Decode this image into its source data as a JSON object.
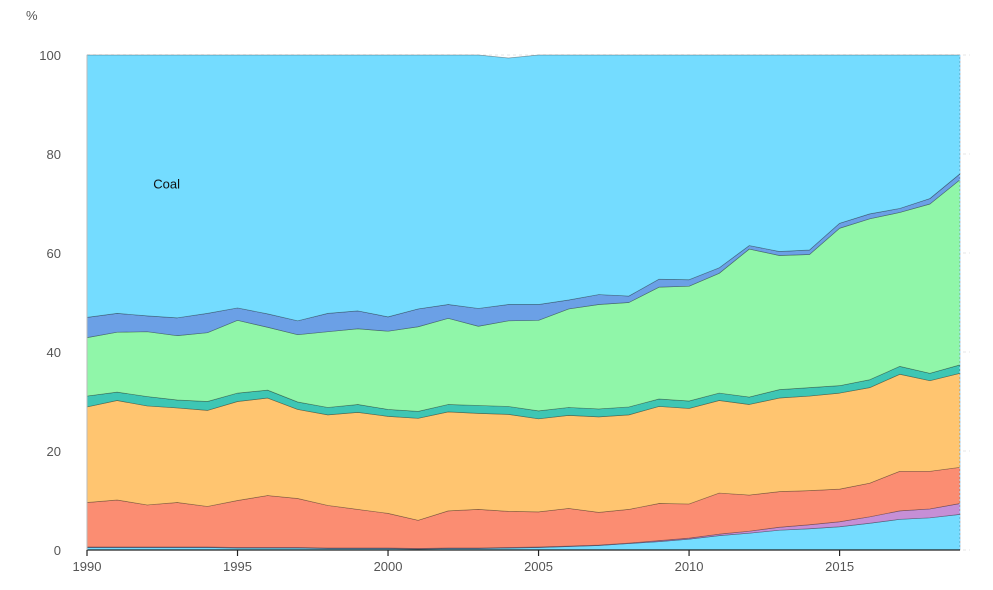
{
  "chart_data": {
    "type": "area",
    "stacked": true,
    "y_unit": "%",
    "ylim": [
      0,
      100
    ],
    "xlim": [
      1990,
      2019
    ],
    "y_ticks": [
      "0",
      "20",
      "40",
      "60",
      "80",
      "100"
    ],
    "x_ticks": [
      "1990",
      "1995",
      "2000",
      "2005",
      "2010",
      "2015"
    ],
    "grid": true,
    "annotations": [
      {
        "text": "Coal",
        "x": 1992.2,
        "y": 73
      }
    ],
    "x": [
      1990,
      1991,
      1992,
      1993,
      1994,
      1995,
      1996,
      1997,
      1998,
      1999,
      2000,
      2001,
      2002,
      2003,
      2004,
      2005,
      2006,
      2007,
      2008,
      2009,
      2010,
      2011,
      2012,
      2013,
      2014,
      2015,
      2016,
      2017,
      2018,
      2019
    ],
    "series": [
      {
        "color": "#74dcff",
        "values": [
          0.5,
          0.5,
          0.5,
          0.5,
          0.5,
          0.4,
          0.4,
          0.4,
          0.3,
          0.3,
          0.3,
          0.2,
          0.3,
          0.3,
          0.4,
          0.5,
          0.7,
          0.9,
          1.3,
          1.7,
          2.2,
          2.9,
          3.4,
          4,
          4.3,
          4.7,
          5.4,
          6.2,
          6.5,
          7.2
        ]
      },
      {
        "color": "#c68fd6",
        "values": [
          0.1,
          0.1,
          0.1,
          0.1,
          0.1,
          0.1,
          0.1,
          0.1,
          0.1,
          0.1,
          0.1,
          0.1,
          0.1,
          0.1,
          0.1,
          0.1,
          0.1,
          0.1,
          0.1,
          0.2,
          0.2,
          0.3,
          0.4,
          0.6,
          0.8,
          1.0,
          1.3,
          1.7,
          1.8,
          2.2
        ]
      },
      {
        "color": "#fb8d72",
        "values": [
          9.0,
          9.5,
          8.5,
          9.0,
          8.2,
          9.5,
          10.5,
          9.9,
          8.6,
          7.8,
          7,
          5.7,
          7.5,
          7.8,
          7.3,
          7.1,
          7.6,
          6.6,
          6.8,
          7.5,
          6.9,
          8.3,
          7.3,
          7.2,
          6.9,
          6.6,
          6.8,
          8.0,
          7.6,
          7.3
        ]
      },
      {
        "color": "#ffc570",
        "values": [
          19.3,
          20.1,
          20,
          19.1,
          19.4,
          20,
          19.7,
          18,
          18.3,
          19.6,
          19.6,
          20.6,
          20,
          19.4,
          19.6,
          18.8,
          18.8,
          19.3,
          19.1,
          19.6,
          19.3,
          18.7,
          18.3,
          18.9,
          19.1,
          19.4,
          19.3,
          19.6,
          18.3,
          19.0
        ]
      },
      {
        "color": "#3ec6b4",
        "values": [
          2.2,
          1.7,
          1.9,
          1.6,
          1.8,
          1.7,
          1.6,
          1.5,
          1.5,
          1.6,
          1.4,
          1.4,
          1.5,
          1.6,
          1.6,
          1.6,
          1.6,
          1.6,
          1.6,
          1.5,
          1.5,
          1.5,
          1.5,
          1.7,
          1.7,
          1.5,
          1.6,
          1.6,
          1.5,
          1.7
        ]
      },
      {
        "color": "#90f6a9",
        "values": [
          11.8,
          12.1,
          13.1,
          13,
          13.9,
          14.7,
          12.7,
          13.6,
          15.3,
          15.3,
          15.8,
          17.1,
          17.4,
          16,
          17.3,
          18.3,
          19.9,
          21.1,
          21.1,
          22.6,
          23.2,
          24.2,
          29.9,
          27.1,
          26.9,
          31.8,
          32.5,
          31.1,
          34.2,
          37.4
        ]
      },
      {
        "color": "#6ba0e6",
        "values": [
          4.1,
          3.8,
          3.2,
          3.6,
          3.9,
          2.5,
          2.7,
          2.8,
          3.7,
          3.6,
          2.9,
          3.6,
          2.8,
          3.6,
          3.3,
          3.2,
          1.8,
          2.0,
          1.3,
          1.6,
          1.3,
          1.1,
          0.7,
          0.8,
          0.9,
          1.0,
          1.0,
          0.8,
          1.1,
          1.2
        ]
      },
      {
        "color": "#74dcff",
        "values": [
          53,
          52.2,
          52.7,
          53.1,
          52.2,
          51.1,
          52.3,
          53.7,
          52.2,
          51.7,
          52.9,
          51.3,
          50.4,
          51.2,
          49.8,
          50.4,
          49.5,
          48.4,
          48.7,
          45.3,
          45.4,
          43,
          38.5,
          39.7,
          39.4,
          34,
          32.1,
          31.0,
          29.0,
          24.0
        ]
      }
    ]
  }
}
